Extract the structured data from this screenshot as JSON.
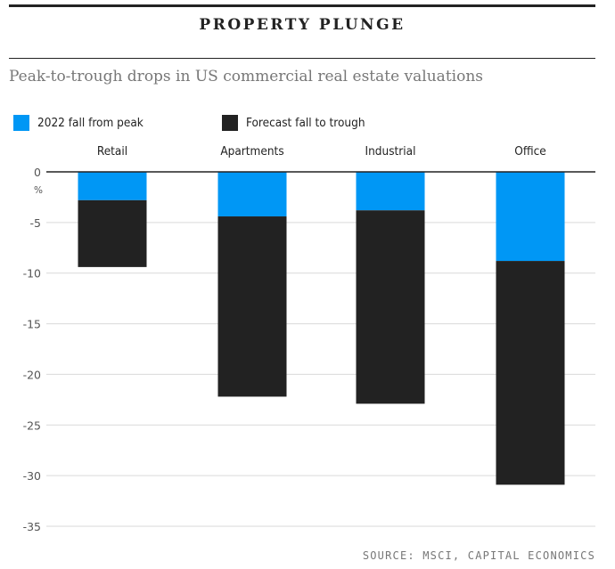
{
  "header": {
    "title": "PROPERTY PLUNGE",
    "subtitle": "Peak-to-trough drops in US commercial real estate valuations"
  },
  "legend": [
    {
      "label": "2022 fall from peak",
      "color": "#0097f5"
    },
    {
      "label": "Forecast fall to trough",
      "color": "#222222"
    }
  ],
  "source": "SOURCE: MSCI, CAPITAL ECONOMICS",
  "chart_data": {
    "type": "bar",
    "stacked": true,
    "categories": [
      "Retail",
      "Apartments",
      "Industrial",
      "Office"
    ],
    "series": [
      {
        "name": "2022 fall from peak",
        "color": "#0097f5",
        "values": [
          -2.8,
          -4.4,
          -3.8,
          -8.8
        ]
      },
      {
        "name": "Forecast fall to trough",
        "color": "#222222",
        "values": [
          -6.6,
          -17.8,
          -19.1,
          -22.1
        ]
      }
    ],
    "totals": [
      -9.4,
      -22.2,
      -22.9,
      -30.9
    ],
    "yticks": [
      "0",
      "-5",
      "-10",
      "-15",
      "-20",
      "-25",
      "-30",
      "-35"
    ],
    "ytick_values": [
      0,
      -5,
      -10,
      -15,
      -20,
      -25,
      -30,
      -35
    ],
    "yunit": "%",
    "ylim": [
      -35,
      0
    ],
    "grid": true,
    "legend_position": "top-left",
    "category_label_position": "top"
  }
}
